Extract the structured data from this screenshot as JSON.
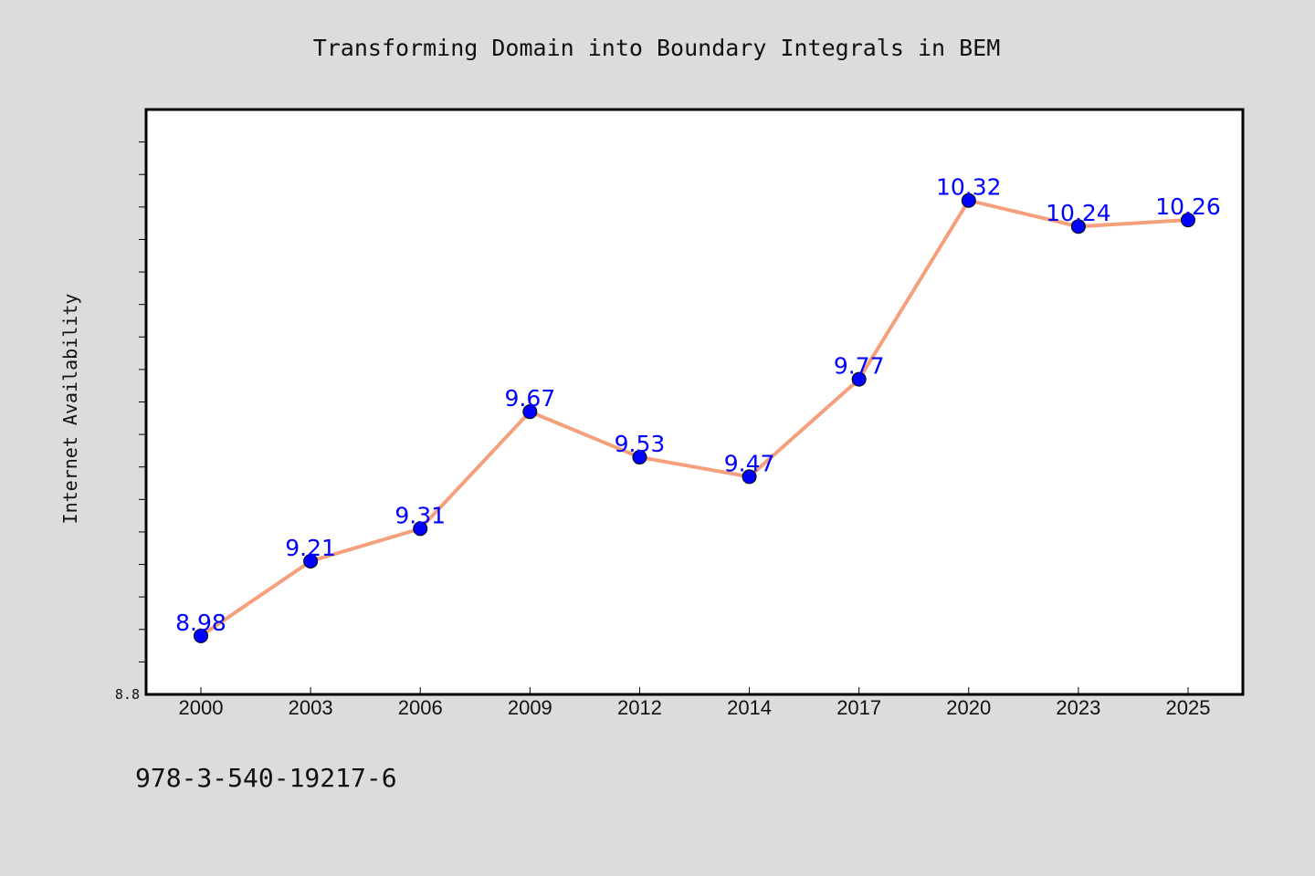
{
  "chart_data": {
    "type": "line",
    "title": "Transforming Domain into Boundary Integrals in BEM",
    "xlabel": "",
    "ylabel": "Internet Availability",
    "categories": [
      "2000",
      "2003",
      "2006",
      "2009",
      "2012",
      "2014",
      "2017",
      "2020",
      "2023",
      "2025"
    ],
    "series": [
      {
        "values": [
          8.98,
          9.21,
          9.31,
          9.67,
          9.53,
          9.47,
          9.77,
          10.32,
          10.24,
          10.26
        ],
        "line_color": "#f4a07c",
        "marker_color": "#0000ff"
      }
    ],
    "data_labels": [
      "8.98",
      "9.21",
      "9.31",
      "9.67",
      "9.53",
      "9.47",
      "9.77",
      "10.32",
      "10.24",
      "10.26"
    ],
    "ylim": [
      8.8,
      10.6
    ],
    "y_tick_labels": [
      "8.8"
    ],
    "grid": false,
    "legend": "none"
  },
  "footnote": "978-3-540-19217-6",
  "colors": {
    "background": "#dcdcdc",
    "plot_background": "#ffffff",
    "line": "#f4a07c",
    "marker": "#0000ff",
    "label": "#0000ff"
  }
}
